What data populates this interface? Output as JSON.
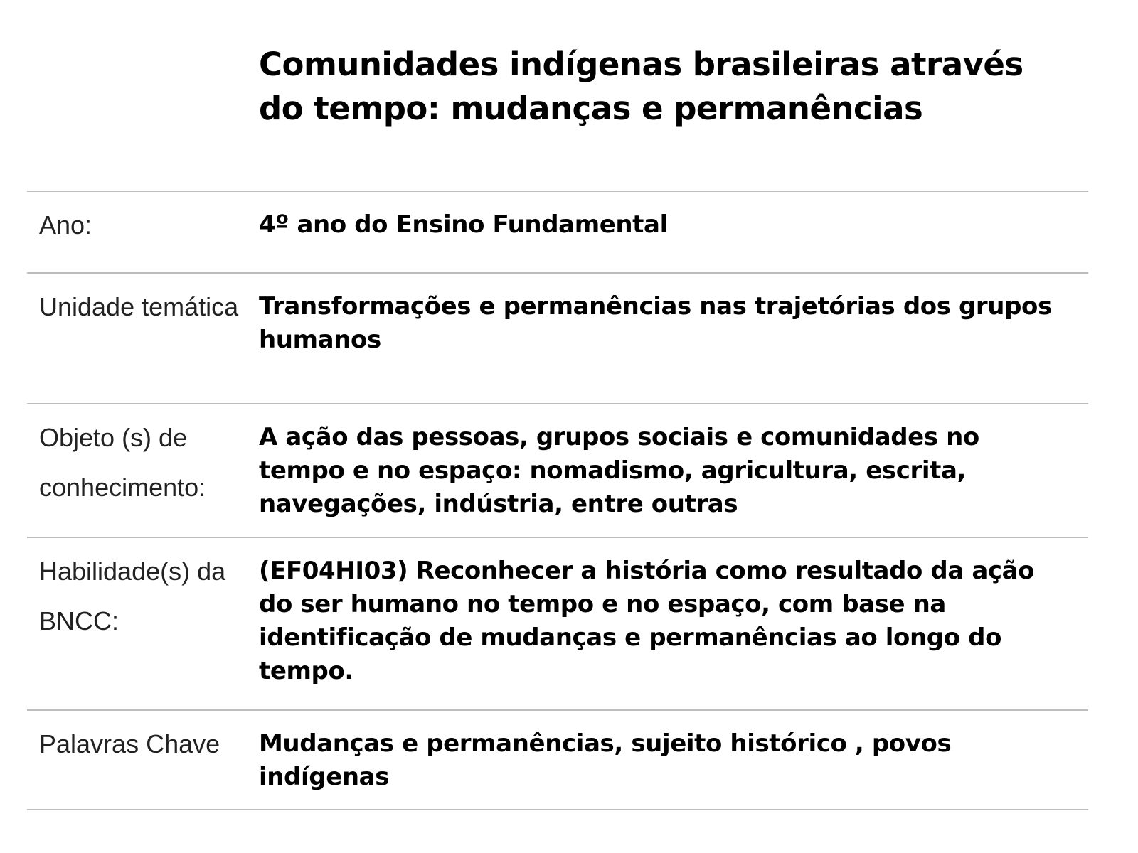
{
  "title": "Comunidades indígenas brasileiras através do tempo: mudanças e permanências",
  "rows": [
    {
      "label": "Ano:",
      "value": "4º ano do Ensino Fundamental"
    },
    {
      "label": "Unidade temática",
      "value": "Transformações e permanências nas trajetórias dos grupos humanos"
    },
    {
      "label": "Objeto (s) de conhecimento:",
      "value": "A ação das pessoas, grupos sociais e comunidades no tempo e no espaço: nomadismo, agricultura, escrita, navegações, indústria, entre outras"
    },
    {
      "label": "Habilidade(s) da BNCC:",
      "value": "(EF04HI03) Reconhecer a história como resultado da ação do ser humano no tempo e no espaço, com base na identificação de mudanças e permanências ao longo do tempo."
    },
    {
      "label": "Palavras Chave",
      "value": "Mudanças e permanências, sujeito histórico , povos indígenas"
    }
  ]
}
